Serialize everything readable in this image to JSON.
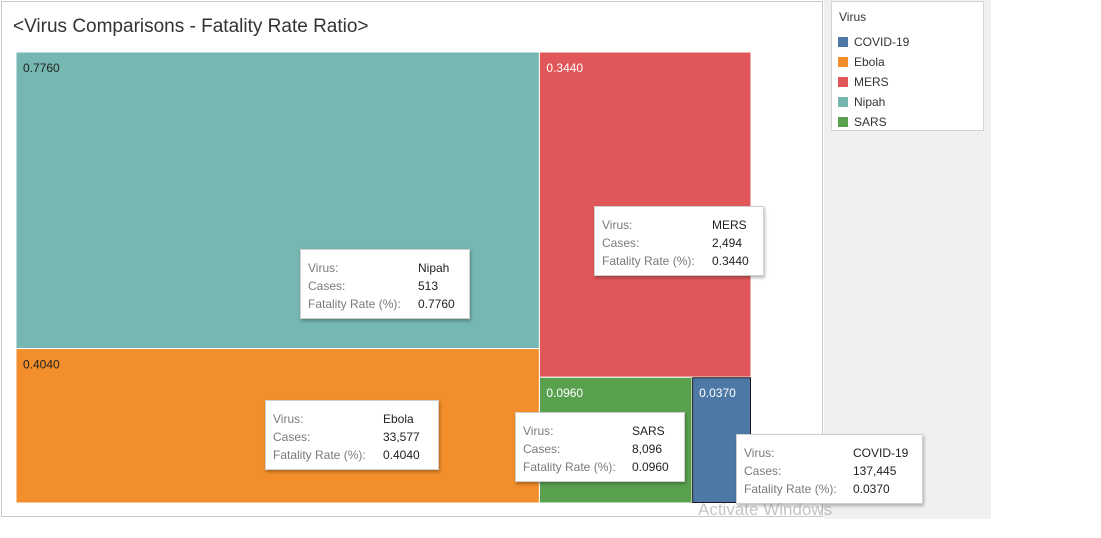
{
  "chart_data": {
    "type": "treemap",
    "title": "<Virus Comparisons - Fatality Rate Ratio>",
    "legend_title": "Virus",
    "legend_placement": "right",
    "series": [
      {
        "name": "Nipah",
        "fatality_rate": 0.776,
        "label": "0.7760",
        "cases": "513",
        "rate_text": "0.7760",
        "color": "#76b7b2"
      },
      {
        "name": "Ebola",
        "fatality_rate": 0.404,
        "label": "0.4040",
        "cases": "33,577",
        "rate_text": "0.4040",
        "color": "#f28e2b"
      },
      {
        "name": "MERS",
        "fatality_rate": 0.344,
        "label": "0.3440",
        "cases": "2,494",
        "rate_text": "0.3440",
        "color": "#e15759"
      },
      {
        "name": "SARS",
        "fatality_rate": 0.096,
        "label": "0.0960",
        "cases": "8,096",
        "rate_text": "0.0960",
        "color": "#59a14f"
      },
      {
        "name": "COVID-19",
        "fatality_rate": 0.037,
        "label": "0.0370",
        "cases": "137,445",
        "rate_text": "0.0370",
        "color": "#4e79a7"
      }
    ]
  },
  "legend": {
    "title": "Virus",
    "items": [
      {
        "label": "COVID-19",
        "color": "#4e79a7"
      },
      {
        "label": "Ebola",
        "color": "#f28e2b"
      },
      {
        "label": "MERS",
        "color": "#e15759"
      },
      {
        "label": "Nipah",
        "color": "#76b7b2"
      },
      {
        "label": "SARS",
        "color": "#59a14f"
      }
    ]
  },
  "tooltip_keys": {
    "virus": "Virus:",
    "cases": "Cases:",
    "rate": "Fatality Rate (%):"
  },
  "watermark": "Activate Windows"
}
